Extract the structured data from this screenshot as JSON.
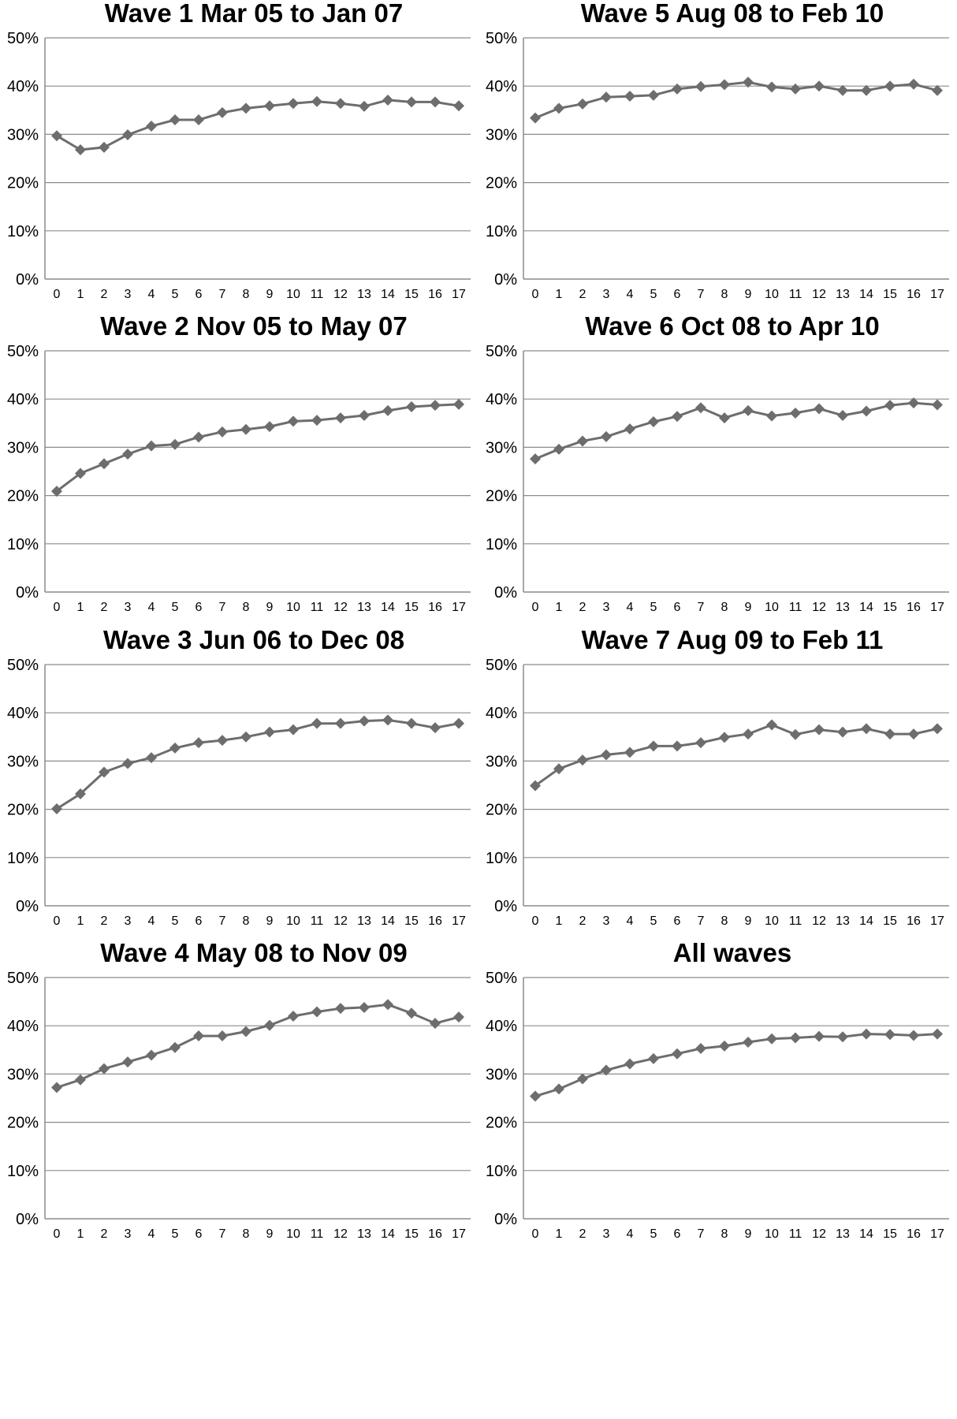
{
  "chart_data": [
    {
      "type": "line",
      "title": "Wave 1 Mar 05 to Jan 07",
      "x": [
        0,
        1,
        2,
        3,
        4,
        5,
        6,
        7,
        8,
        9,
        10,
        11,
        12,
        13,
        14,
        15,
        16,
        17
      ],
      "values": [
        29.7,
        26.8,
        27.3,
        29.9,
        31.7,
        33.0,
        33.0,
        34.5,
        35.4,
        35.9,
        36.4,
        36.8,
        36.4,
        35.8,
        37.1,
        36.7,
        36.7,
        35.9
      ],
      "yticks": [
        "0%",
        "10%",
        "20%",
        "30%",
        "40%",
        "50%"
      ],
      "ylim": [
        0,
        50
      ],
      "grid": true,
      "color": "#6d6d6d"
    },
    {
      "type": "line",
      "title": "Wave 2 Nov 05 to May 07",
      "x": [
        0,
        1,
        2,
        3,
        4,
        5,
        6,
        7,
        8,
        9,
        10,
        11,
        12,
        13,
        14,
        15,
        16,
        17
      ],
      "values": [
        20.9,
        24.6,
        26.6,
        28.6,
        30.3,
        30.6,
        32.1,
        33.2,
        33.7,
        34.3,
        35.4,
        35.6,
        36.1,
        36.6,
        37.6,
        38.4,
        38.7,
        38.9
      ],
      "yticks": [
        "0%",
        "10%",
        "20%",
        "30%",
        "40%",
        "50%"
      ],
      "ylim": [
        0,
        50
      ],
      "grid": true,
      "color": "#6d6d6d"
    },
    {
      "type": "line",
      "title": "Wave 3 Jun 06 to Dec 08",
      "x": [
        0,
        1,
        2,
        3,
        4,
        5,
        6,
        7,
        8,
        9,
        10,
        11,
        12,
        13,
        14,
        15,
        16,
        17
      ],
      "values": [
        20.1,
        23.2,
        27.7,
        29.5,
        30.7,
        32.7,
        33.8,
        34.3,
        35.0,
        36.0,
        36.5,
        37.8,
        37.8,
        38.3,
        38.5,
        37.8,
        36.9,
        37.8
      ],
      "yticks": [
        "0%",
        "10%",
        "20%",
        "30%",
        "40%",
        "50%"
      ],
      "ylim": [
        0,
        50
      ],
      "grid": true,
      "color": "#6d6d6d"
    },
    {
      "type": "line",
      "title": "Wave 4 May 08 to Nov 09",
      "x": [
        0,
        1,
        2,
        3,
        4,
        5,
        6,
        7,
        8,
        9,
        10,
        11,
        12,
        13,
        14,
        15,
        16,
        17
      ],
      "values": [
        27.2,
        28.8,
        31.1,
        32.5,
        33.9,
        35.5,
        37.9,
        37.9,
        38.8,
        40.1,
        42.0,
        42.9,
        43.6,
        43.8,
        44.4,
        42.6,
        40.5,
        41.8
      ],
      "yticks": [
        "0%",
        "10%",
        "20%",
        "30%",
        "40%",
        "50%"
      ],
      "ylim": [
        0,
        50
      ],
      "grid": true,
      "color": "#6d6d6d"
    },
    {
      "type": "line",
      "title": "Wave 5 Aug 08 to Feb 10",
      "x": [
        0,
        1,
        2,
        3,
        4,
        5,
        6,
        7,
        8,
        9,
        10,
        11,
        12,
        13,
        14,
        15,
        16,
        17
      ],
      "values": [
        33.4,
        35.4,
        36.3,
        37.7,
        37.9,
        38.1,
        39.4,
        39.9,
        40.3,
        40.8,
        39.8,
        39.4,
        40.0,
        39.1,
        39.1,
        40.0,
        40.4,
        39.1
      ],
      "yticks": [
        "0%",
        "10%",
        "20%",
        "30%",
        "40%",
        "50%"
      ],
      "ylim": [
        0,
        50
      ],
      "grid": true,
      "color": "#6d6d6d"
    },
    {
      "type": "line",
      "title": "Wave 6 Oct 08 to Apr 10",
      "x": [
        0,
        1,
        2,
        3,
        4,
        5,
        6,
        7,
        8,
        9,
        10,
        11,
        12,
        13,
        14,
        15,
        16,
        17
      ],
      "values": [
        27.6,
        29.6,
        31.3,
        32.2,
        33.8,
        35.3,
        36.4,
        38.2,
        36.1,
        37.6,
        36.5,
        37.1,
        38.0,
        36.6,
        37.5,
        38.7,
        39.2,
        38.8
      ],
      "yticks": [
        "0%",
        "10%",
        "20%",
        "30%",
        "40%",
        "50%"
      ],
      "ylim": [
        0,
        50
      ],
      "grid": true,
      "color": "#6d6d6d"
    },
    {
      "type": "line",
      "title": "Wave 7 Aug 09 to Feb 11",
      "x": [
        0,
        1,
        2,
        3,
        4,
        5,
        6,
        7,
        8,
        9,
        10,
        11,
        12,
        13,
        14,
        15,
        16,
        17
      ],
      "values": [
        24.9,
        28.4,
        30.2,
        31.3,
        31.8,
        33.1,
        33.1,
        33.8,
        34.9,
        35.6,
        37.5,
        35.5,
        36.5,
        36.0,
        36.7,
        35.6,
        35.6,
        36.7
      ],
      "yticks": [
        "0%",
        "10%",
        "20%",
        "30%",
        "40%",
        "50%"
      ],
      "ylim": [
        0,
        50
      ],
      "grid": true,
      "color": "#6d6d6d"
    },
    {
      "type": "line",
      "title": "All waves",
      "x": [
        0,
        1,
        2,
        3,
        4,
        5,
        6,
        7,
        8,
        9,
        10,
        11,
        12,
        13,
        14,
        15,
        16,
        17
      ],
      "values": [
        25.4,
        26.9,
        29.0,
        30.8,
        32.1,
        33.2,
        34.2,
        35.3,
        35.8,
        36.6,
        37.3,
        37.5,
        37.8,
        37.7,
        38.3,
        38.2,
        38.0,
        38.3
      ],
      "yticks": [
        "0%",
        "10%",
        "20%",
        "30%",
        "40%",
        "50%"
      ],
      "ylim": [
        0,
        50
      ],
      "grid": true,
      "color": "#6d6d6d"
    }
  ]
}
